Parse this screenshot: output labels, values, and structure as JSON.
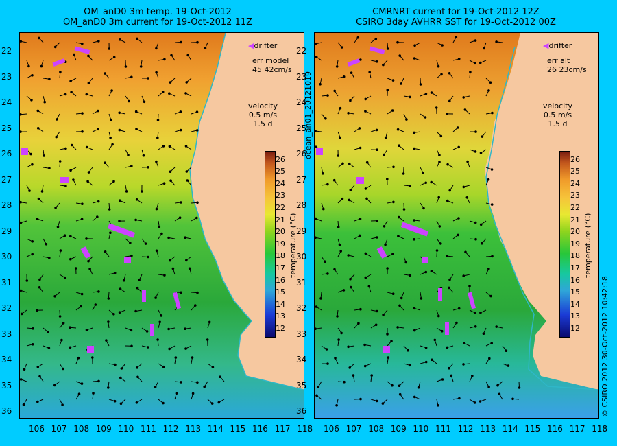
{
  "left_panel": {
    "title_line1": "OM_anD0 3m temp. 19-Oct-2012",
    "title_line2": "OM_anD0 3m current for 19-Oct-2012 11Z",
    "legend_drifter": "drifter",
    "err_label": "err model",
    "err_value": "45 42cm/s",
    "velocity_label": "velocity",
    "velocity_scale": "0.5 m/s",
    "velocity_days": "1.5 d",
    "colorbar_unit": "temperature (°C)"
  },
  "right_panel": {
    "title_line1": "CMRNRT current for 19-Oct-2012 12Z",
    "title_line2": "CSIRO 3day AVHRR SST for 19-Oct-2012 00Z",
    "legend_drifter": "drifter",
    "err_label": "err alt",
    "err_value": "26 23cm/s",
    "velocity_label": "velocity",
    "velocity_scale": "0.5 m/s",
    "velocity_days": "1.5 d",
    "colorbar_unit": "temperature (°C)"
  },
  "side_note_middle": "ocean_an01_20121019",
  "side_note_right": "© CSIRO 2012   30-Oct-2012 10:42:18",
  "y_ticks": [
    "22",
    "23",
    "24",
    "25",
    "26",
    "27",
    "28",
    "29",
    "30",
    "31",
    "32",
    "33",
    "34",
    "35",
    "36"
  ],
  "x_ticks": [
    "106",
    "107",
    "108",
    "109",
    "110",
    "111",
    "112",
    "113",
    "114",
    "115",
    "116",
    "117",
    "118"
  ],
  "colorbar_ticks": [
    "12",
    "13",
    "14",
    "15",
    "16",
    "17",
    "18",
    "19",
    "20",
    "21",
    "22",
    "23",
    "24",
    "25",
    "26"
  ],
  "colors": {
    "background": "#00ccff",
    "land": "#f6c8a0",
    "drifter": "#cc44ff",
    "coast_track": "#2fb7c8"
  }
}
